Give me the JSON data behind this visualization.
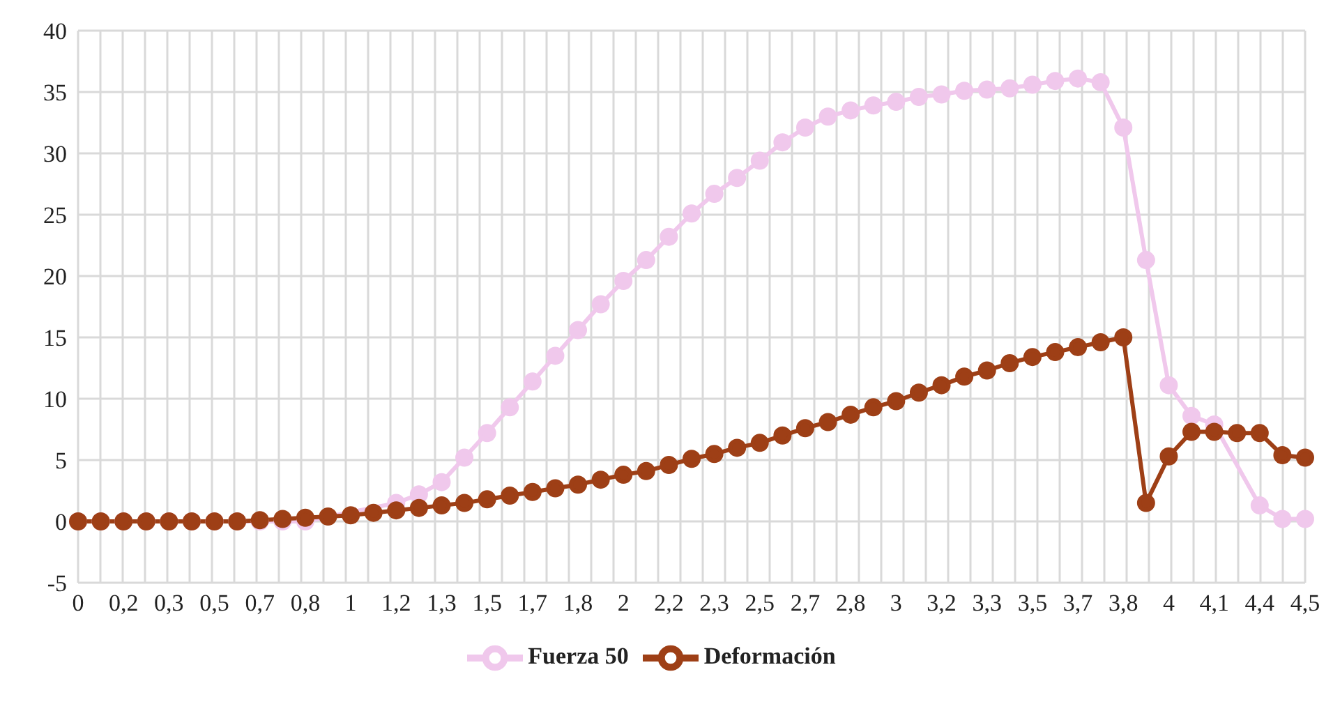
{
  "chart_data": {
    "type": "line",
    "categories": [
      "0",
      null,
      "0,2",
      null,
      "0,3",
      null,
      "0,5",
      null,
      "0,7",
      null,
      "0,8",
      null,
      "1",
      null,
      "1,2",
      null,
      "1,3",
      null,
      "1,5",
      null,
      "1,7",
      null,
      "1,8",
      null,
      "2",
      null,
      "2,2",
      null,
      "2,3",
      null,
      "2,5",
      null,
      "2,7",
      null,
      "2,8",
      null,
      "3",
      null,
      "3,2",
      null,
      "3,3",
      null,
      "3,5",
      null,
      "3,7",
      null,
      "3,8",
      null,
      "4",
      null,
      "4,1",
      null,
      "4,4",
      null,
      "4,5"
    ],
    "series": [
      {
        "name": "Fuerza 50",
        "color": "#f0c8ec",
        "values": [
          0,
          0,
          0,
          0,
          0,
          0,
          0,
          0,
          0,
          0,
          0,
          null,
          null,
          null,
          1.5,
          2.2,
          3.2,
          5.2,
          7.2,
          9.3,
          11.4,
          13.5,
          15.6,
          17.7,
          19.6,
          21.3,
          23.2,
          25.1,
          26.7,
          28.0,
          29.4,
          30.9,
          32.1,
          33.0,
          33.5,
          33.9,
          34.2,
          34.6,
          34.8,
          35.1,
          35.2,
          35.3,
          35.6,
          35.9,
          36.1,
          35.8,
          32.1,
          21.3,
          11.1,
          8.6,
          7.9,
          null,
          1.3,
          0.2,
          0.2
        ]
      },
      {
        "name": "Deformación",
        "color": "#9e3f16",
        "values": [
          0,
          0,
          0,
          0,
          0,
          0,
          0,
          0,
          0.1,
          0.2,
          0.3,
          0.4,
          0.5,
          0.7,
          0.9,
          1.1,
          1.3,
          1.5,
          1.8,
          2.1,
          2.4,
          2.7,
          3.0,
          3.4,
          3.8,
          4.1,
          4.6,
          5.1,
          5.5,
          6.0,
          6.4,
          7.0,
          7.6,
          8.1,
          8.7,
          9.3,
          9.8,
          10.5,
          11.1,
          11.8,
          12.3,
          12.9,
          13.4,
          13.8,
          14.2,
          14.6,
          15.0,
          1.5,
          5.3,
          7.3,
          7.3,
          7.2,
          7.2,
          5.4,
          5.2
        ]
      }
    ],
    "ylim": [
      -5,
      40
    ],
    "yticks": [
      -5,
      0,
      5,
      10,
      15,
      20,
      25,
      30,
      35,
      40
    ],
    "grid": true,
    "legend": "bottom",
    "marker": "circle",
    "line_style": "solid"
  }
}
